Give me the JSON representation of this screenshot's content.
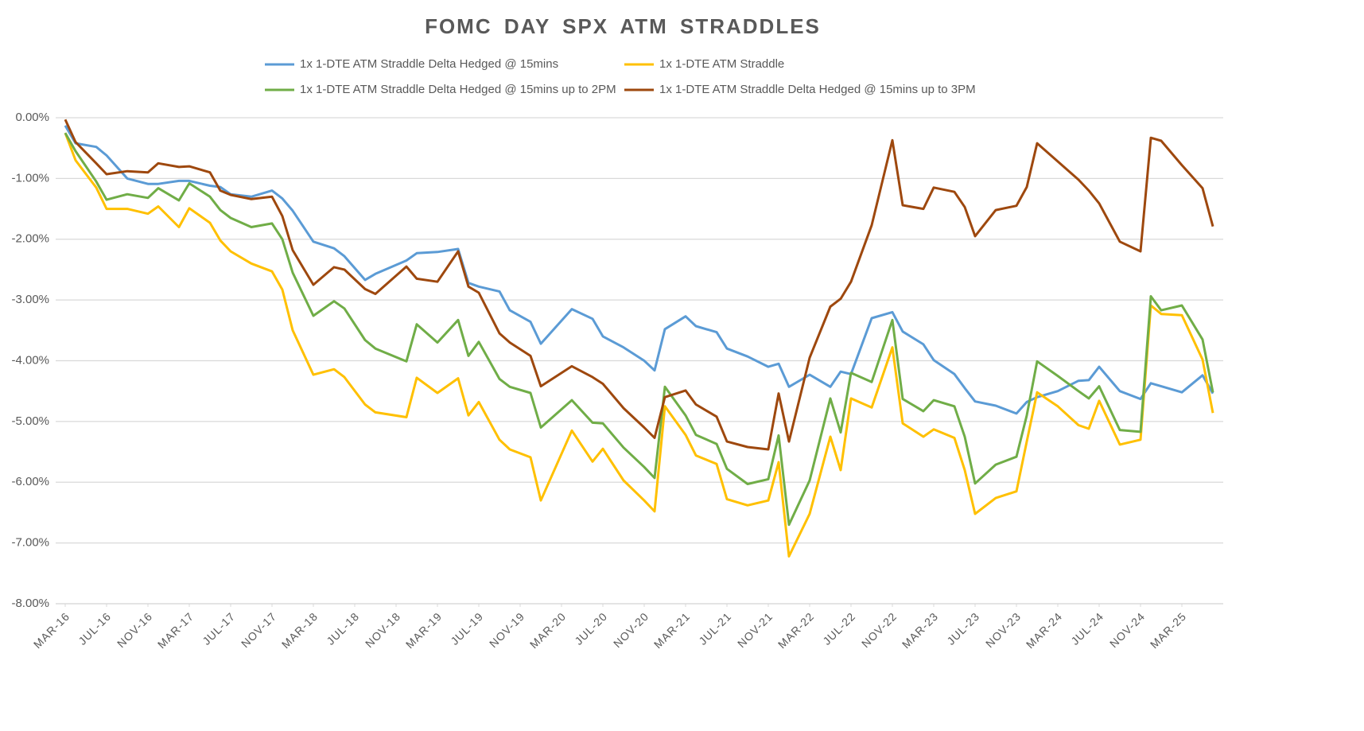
{
  "chart_data": {
    "type": "line",
    "title": "FOMC DAY SPX ATM STRADDLES",
    "x": [
      "MAR-16",
      "APR-16",
      "JUN-16",
      "JUL-16",
      "SEP-16",
      "NOV-16",
      "DEC-16",
      "FEB-17",
      "MAR-17",
      "MAY-17",
      "JUN-17",
      "JUL-17",
      "SEP-17",
      "NOV-17",
      "DEC-17",
      "JAN-18",
      "MAR-18",
      "MAY-18",
      "JUN-18",
      "AUG-18",
      "SEP-18",
      "DEC-18",
      "JAN-19",
      "MAR-19",
      "MAY-19",
      "JUN-19",
      "JUL-19",
      "SEP-19",
      "OCT-19",
      "DEC-19",
      "JAN-20",
      "APR-20",
      "JUN-20",
      "JUL-20",
      "SEP-20",
      "NOV-20",
      "DEC-20",
      "JAN-21",
      "MAR-21",
      "APR-21",
      "JUN-21",
      "JUL-21",
      "SEP-21",
      "NOV-21",
      "DEC-21",
      "JAN-22",
      "MAR-22",
      "MAY-22",
      "JUN-22",
      "JUL-22",
      "SEP-22",
      "NOV-22",
      "DEC-22",
      "FEB-23",
      "MAR-23",
      "MAY-23",
      "JUN-23",
      "JUL-23",
      "SEP-23",
      "NOV-23",
      "DEC-23",
      "JAN-24",
      "MAR-24",
      "MAY-24",
      "JUN-24",
      "JUL-24",
      "SEP-24",
      "NOV-24",
      "DEC-24",
      "JAN-25",
      "MAR-25",
      "MAY-25",
      "JUN-25"
    ],
    "xticks": [
      "MAR-16",
      "JUL-16",
      "NOV-16",
      "MAR-17",
      "JUL-17",
      "NOV-17",
      "MAR-18",
      "JUL-18",
      "NOV-18",
      "MAR-19",
      "JUL-19",
      "NOV-19",
      "MAR-20",
      "JUL-20",
      "NOV-20",
      "MAR-21",
      "JUL-21",
      "NOV-21",
      "MAR-22",
      "JUL-22",
      "NOV-22",
      "MAR-23",
      "JUL-23",
      "NOV-23",
      "MAR-24",
      "JUL-24",
      "NOV-24",
      "MAR-25"
    ],
    "ylim": [
      -8,
      0
    ],
    "yticks": [
      {
        "value": 0,
        "label": "0.00%"
      },
      {
        "value": -1,
        "label": "-1.00%"
      },
      {
        "value": -2,
        "label": "-2.00%"
      },
      {
        "value": -3,
        "label": "-3.00%"
      },
      {
        "value": -4,
        "label": "-4.00%"
      },
      {
        "value": -5,
        "label": "-5.00%"
      },
      {
        "value": -6,
        "label": "-6.00%"
      },
      {
        "value": -7,
        "label": "-7.00%"
      },
      {
        "value": -8,
        "label": "-8.00%"
      }
    ],
    "grid": true,
    "legend": "top",
    "series": [
      {
        "name": "1x 1-DTE ATM Straddle Delta Hedged @ 15mins",
        "color": "#5b9bd5",
        "values": [
          -0.13,
          -0.42,
          -0.48,
          -0.62,
          -1.0,
          -1.09,
          -1.09,
          -1.04,
          -1.04,
          -1.12,
          -1.14,
          -1.26,
          -1.3,
          -1.2,
          -1.33,
          -1.53,
          -2.04,
          -2.15,
          -2.28,
          -2.67,
          -2.57,
          -2.35,
          -2.23,
          -2.21,
          -2.16,
          -2.72,
          -2.78,
          -2.86,
          -3.17,
          -3.36,
          -3.72,
          -3.15,
          -3.31,
          -3.6,
          -3.78,
          -4.0,
          -4.16,
          -3.48,
          -3.27,
          -3.43,
          -3.53,
          -3.8,
          -3.93,
          -4.1,
          -4.05,
          -4.43,
          -4.23,
          -4.43,
          -4.18,
          -4.22,
          -3.3,
          -3.2,
          -3.52,
          -3.73,
          -3.99,
          -4.22,
          -4.45,
          -4.67,
          -4.74,
          -4.87,
          -4.68,
          -4.6,
          -4.5,
          -4.33,
          -4.32,
          -4.1,
          -4.5,
          -4.63,
          -4.37,
          -4.42,
          -4.52,
          -4.24,
          -4.54
        ]
      },
      {
        "name": "1x 1-DTE ATM Straddle",
        "color": "#ffc000",
        "values": [
          -0.25,
          -0.7,
          -1.15,
          -1.5,
          -1.5,
          -1.58,
          -1.46,
          -1.8,
          -1.49,
          -1.73,
          -2.02,
          -2.2,
          -2.4,
          -2.53,
          -2.83,
          -3.5,
          -4.23,
          -4.14,
          -4.27,
          -4.72,
          -4.85,
          -4.93,
          -4.28,
          -4.53,
          -4.29,
          -4.9,
          -4.68,
          -5.3,
          -5.46,
          -5.59,
          -6.3,
          -5.15,
          -5.66,
          -5.45,
          -5.97,
          -6.3,
          -6.48,
          -4.75,
          -5.22,
          -5.56,
          -5.7,
          -6.28,
          -6.38,
          -6.3,
          -5.67,
          -7.22,
          -6.52,
          -5.25,
          -5.8,
          -4.62,
          -4.77,
          -3.78,
          -5.03,
          -5.25,
          -5.13,
          -5.27,
          -5.8,
          -6.52,
          -6.26,
          -6.15,
          -5.33,
          -4.52,
          -4.75,
          -5.06,
          -5.12,
          -4.66,
          -5.38,
          -5.3,
          -3.09,
          -3.23,
          -3.25,
          -3.98,
          -4.86
        ]
      },
      {
        "name": "1x 1-DTE ATM Straddle Delta Hedged @ 15mins up to 2PM",
        "color": "#70ad47",
        "values": [
          -0.25,
          -0.55,
          -1.05,
          -1.35,
          -1.26,
          -1.32,
          -1.16,
          -1.36,
          -1.08,
          -1.3,
          -1.52,
          -1.65,
          -1.8,
          -1.74,
          -2.0,
          -2.55,
          -3.26,
          -3.02,
          -3.14,
          -3.66,
          -3.8,
          -4.01,
          -3.4,
          -3.7,
          -3.33,
          -3.92,
          -3.69,
          -4.3,
          -4.43,
          -4.53,
          -5.1,
          -4.65,
          -5.02,
          -5.03,
          -5.43,
          -5.75,
          -5.93,
          -4.43,
          -4.9,
          -5.22,
          -5.37,
          -5.78,
          -6.03,
          -5.95,
          -5.23,
          -6.7,
          -5.97,
          -4.62,
          -5.18,
          -4.2,
          -4.35,
          -3.33,
          -4.63,
          -4.83,
          -4.65,
          -4.75,
          -5.25,
          -6.02,
          -5.71,
          -5.58,
          -4.9,
          -4.01,
          -4.25,
          -4.5,
          -4.62,
          -4.42,
          -5.14,
          -5.17,
          -2.94,
          -3.17,
          -3.09,
          -3.65,
          -4.52
        ]
      },
      {
        "name": "1x 1-DTE ATM Straddle Delta Hedged @ 15mins up to 3PM",
        "color": "#9e480e",
        "values": [
          -0.03,
          -0.4,
          -0.75,
          -0.93,
          -0.88,
          -0.9,
          -0.75,
          -0.81,
          -0.8,
          -0.9,
          -1.2,
          -1.27,
          -1.34,
          -1.3,
          -1.62,
          -2.18,
          -2.75,
          -2.46,
          -2.5,
          -2.82,
          -2.9,
          -2.45,
          -2.65,
          -2.7,
          -2.2,
          -2.78,
          -2.88,
          -3.55,
          -3.7,
          -3.92,
          -4.42,
          -4.09,
          -4.27,
          -4.38,
          -4.78,
          -5.1,
          -5.27,
          -4.6,
          -4.49,
          -4.72,
          -4.92,
          -5.33,
          -5.42,
          -5.46,
          -4.54,
          -5.33,
          -3.95,
          -3.11,
          -2.98,
          -2.7,
          -1.77,
          -0.37,
          -1.44,
          -1.5,
          -1.15,
          -1.22,
          -1.47,
          -1.95,
          -1.52,
          -1.45,
          -1.14,
          -0.42,
          -0.72,
          -1.02,
          -1.2,
          -1.41,
          -2.04,
          -2.2,
          -0.33,
          -0.38,
          -0.78,
          -1.16,
          -1.79
        ]
      }
    ]
  }
}
